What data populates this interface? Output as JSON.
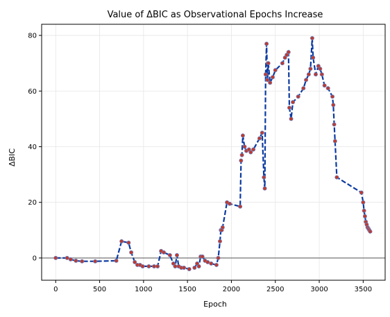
{
  "chart_data": {
    "type": "line",
    "title": "Value of ΔBIC as Observational Epochs Increase",
    "xlabel": "Epoch",
    "ylabel": "ΔBIC",
    "xlim": [
      -160,
      3750
    ],
    "ylim": [
      -8,
      84
    ],
    "xticks": [
      "0",
      "500",
      "1000",
      "1500",
      "2000",
      "2500",
      "3000",
      "3500"
    ],
    "yticks": [
      "0",
      "20",
      "40",
      "60",
      "80"
    ],
    "grid": true,
    "reference_line_y": 0,
    "colors": {
      "line": "#0b3aa0",
      "marker_fill": "#c0392b",
      "marker_edge": "#6b7fc0",
      "reference": "#808080",
      "grid": "#e6e6e6"
    },
    "x": [
      0,
      130,
      170,
      230,
      300,
      450,
      690,
      750,
      830,
      860,
      900,
      930,
      960,
      990,
      1060,
      1120,
      1160,
      1200,
      1230,
      1300,
      1340,
      1360,
      1380,
      1400,
      1430,
      1460,
      1520,
      1580,
      1610,
      1630,
      1650,
      1670,
      1700,
      1730,
      1770,
      1830,
      1850,
      1870,
      1880,
      1890,
      1900,
      1950,
      1980,
      2100,
      2110,
      2120,
      2130,
      2150,
      2170,
      2200,
      2220,
      2250,
      2320,
      2350,
      2370,
      2380,
      2390,
      2400,
      2410,
      2420,
      2440,
      2470,
      2500,
      2580,
      2610,
      2630,
      2650,
      2660,
      2680,
      2700,
      2760,
      2820,
      2850,
      2880,
      2900,
      2920,
      2930,
      2960,
      2990,
      3010,
      3030,
      3060,
      3100,
      3150,
      3160,
      3170,
      3180,
      3200,
      3480,
      3500,
      3510,
      3520,
      3530,
      3540,
      3550,
      3560,
      3570,
      3580
    ],
    "y": [
      0,
      0,
      -0.5,
      -1,
      -1.2,
      -1.2,
      -1,
      6,
      5.5,
      2,
      -1.5,
      -2.5,
      -2.5,
      -3,
      -3,
      -3,
      -3,
      2.5,
      2,
      1,
      -2,
      -3,
      1,
      -3,
      -3.5,
      -3.5,
      -4,
      -3.5,
      -2,
      -3,
      0.5,
      0.5,
      -1,
      -1.5,
      -2,
      -2.5,
      0,
      6,
      10,
      10,
      11,
      20,
      19.5,
      18.5,
      35,
      37,
      44,
      40,
      38.5,
      39,
      38,
      39,
      43,
      45,
      29,
      25,
      66,
      77,
      64,
      70,
      63,
      65,
      67.5,
      70,
      72,
      73,
      74,
      54,
      50,
      56,
      58,
      61,
      64,
      66,
      68,
      79,
      72,
      66,
      69,
      68,
      66,
      62,
      61,
      58,
      55,
      48,
      42,
      29,
      23.5,
      20,
      17,
      15,
      13,
      12,
      11,
      10.5,
      10,
      9.5
    ]
  }
}
